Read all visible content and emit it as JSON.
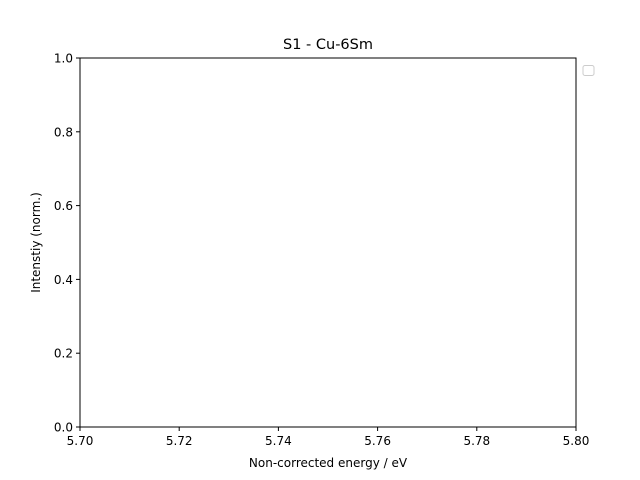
{
  "chart_data": {
    "type": "line",
    "title": "S1 - Cu-6Sm",
    "xlabel": "Non-corrected energy / eV",
    "ylabel": "Intenstiy (norm.)",
    "xlim": [
      5.7,
      5.8
    ],
    "ylim": [
      0.0,
      1.0
    ],
    "xticks": [
      "5.70",
      "5.72",
      "5.74",
      "5.76",
      "5.78",
      "5.80"
    ],
    "yticks": [
      "0.0",
      "0.2",
      "0.4",
      "0.6",
      "0.8",
      "1.0"
    ],
    "series": [],
    "grid": false,
    "legend": {
      "placement": "outside-top-right",
      "entries": []
    }
  }
}
